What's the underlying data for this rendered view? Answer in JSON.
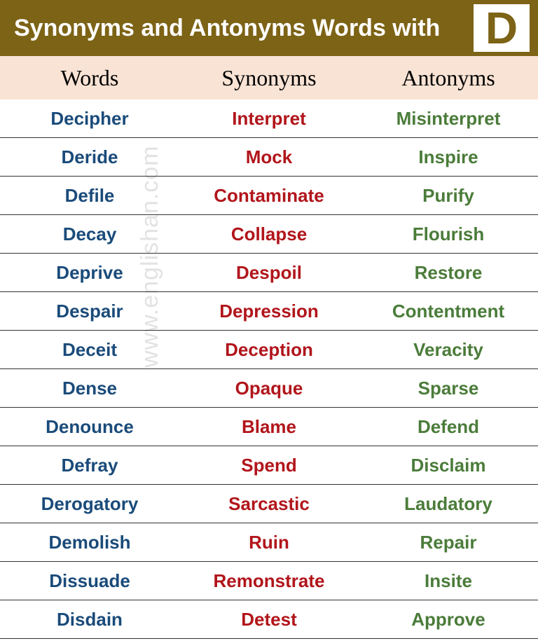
{
  "header": {
    "title": "Synonyms and Antonyms Words with",
    "letter": "D",
    "bg_color": "#7d6316",
    "title_color": "#ffffff"
  },
  "columns": {
    "bg_color": "#f9e3d4",
    "words": "Words",
    "synonyms": "Synonyms",
    "antonyms": "Antonyms"
  },
  "colors": {
    "word": "#1a4b7a",
    "synonym": "#b1151b",
    "antonym": "#4b7c3a",
    "row_border": "#333333"
  },
  "rows": [
    {
      "word": "Decipher",
      "synonym": "Interpret",
      "antonym": "Misinterpret"
    },
    {
      "word": "Deride",
      "synonym": "Mock",
      "antonym": "Inspire"
    },
    {
      "word": "Defile",
      "synonym": "Contaminate",
      "antonym": "Purify"
    },
    {
      "word": "Decay",
      "synonym": "Collapse",
      "antonym": "Flourish"
    },
    {
      "word": "Deprive",
      "synonym": "Despoil",
      "antonym": "Restore"
    },
    {
      "word": "Despair",
      "synonym": "Depression",
      "antonym": "Contentment"
    },
    {
      "word": "Deceit",
      "synonym": "Deception",
      "antonym": "Veracity"
    },
    {
      "word": "Dense",
      "synonym": "Opaque",
      "antonym": "Sparse"
    },
    {
      "word": "Denounce",
      "synonym": "Blame",
      "antonym": "Defend"
    },
    {
      "word": "Defray",
      "synonym": "Spend",
      "antonym": "Disclaim"
    },
    {
      "word": "Derogatory",
      "synonym": "Sarcastic",
      "antonym": "Laudatory"
    },
    {
      "word": "Demolish",
      "synonym": "Ruin",
      "antonym": "Repair"
    },
    {
      "word": "Dissuade",
      "synonym": "Remonstrate",
      "antonym": "Insite"
    },
    {
      "word": "Disdain",
      "synonym": "Detest",
      "antonym": "Approve"
    }
  ],
  "watermark": "www.englishan.com"
}
